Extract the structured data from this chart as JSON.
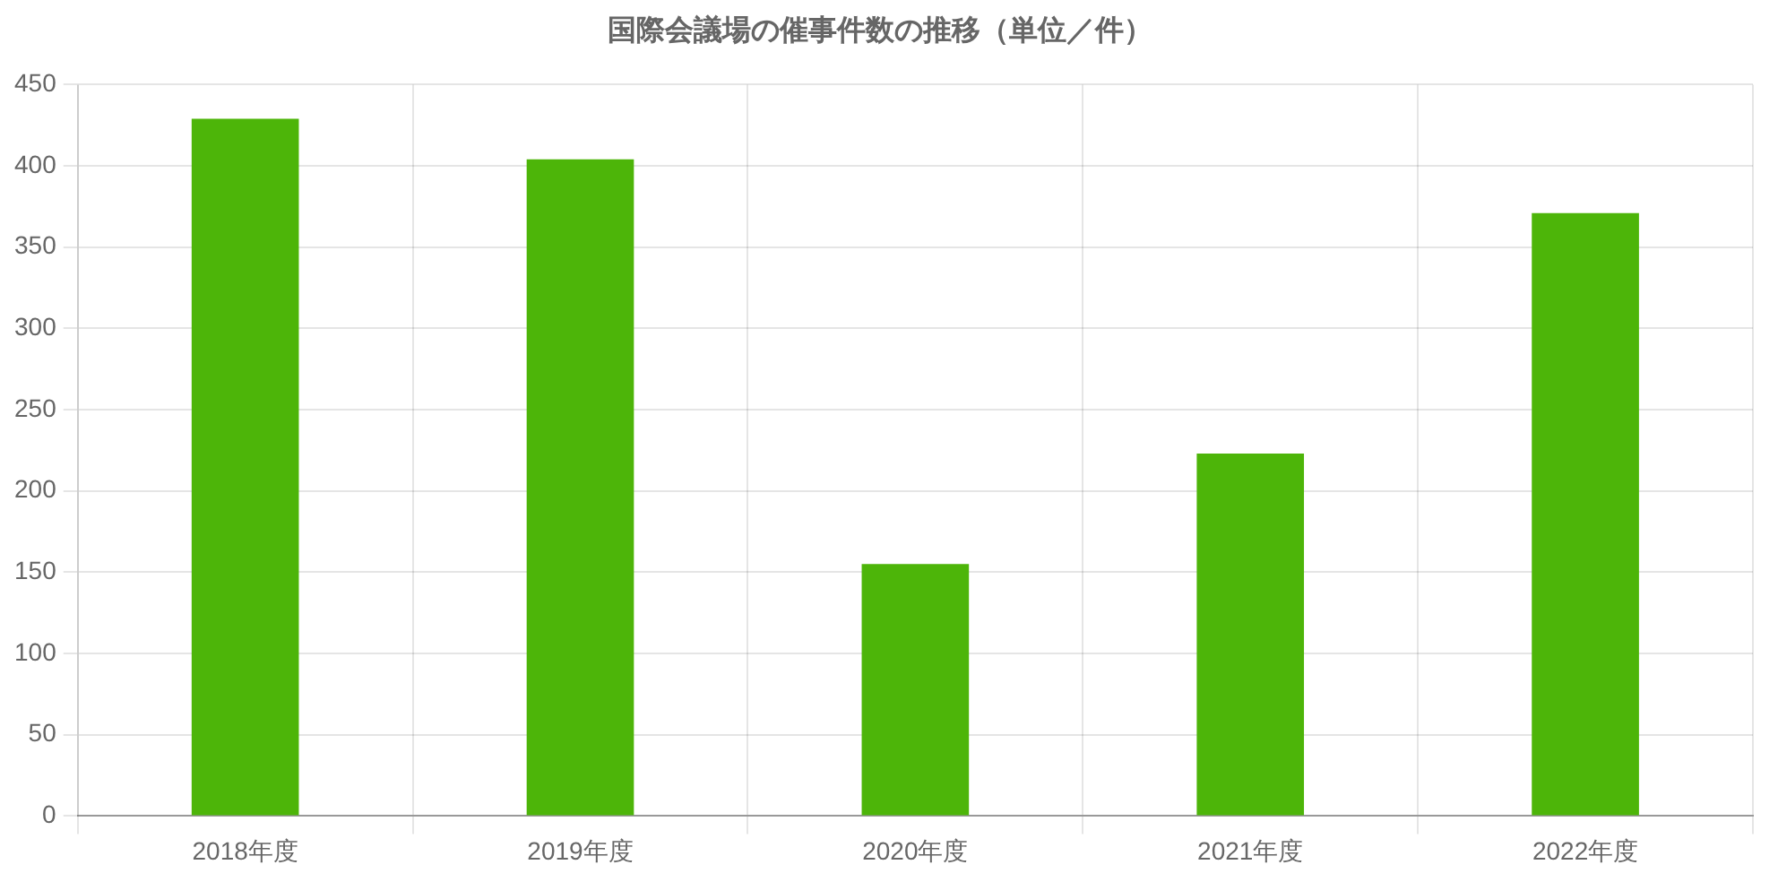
{
  "chart_data": {
    "type": "bar",
    "title": "国際会議場の催事件数の推移（単位／件）",
    "categories": [
      "2018年度",
      "2019年度",
      "2020年度",
      "2021年度",
      "2022年度"
    ],
    "values": [
      429,
      404,
      155,
      223,
      371
    ],
    "color": "#4db509",
    "ylim": [
      0,
      450
    ],
    "yticks": [
      0,
      50,
      100,
      150,
      200,
      250,
      300,
      350,
      400,
      450
    ],
    "grid": true
  }
}
